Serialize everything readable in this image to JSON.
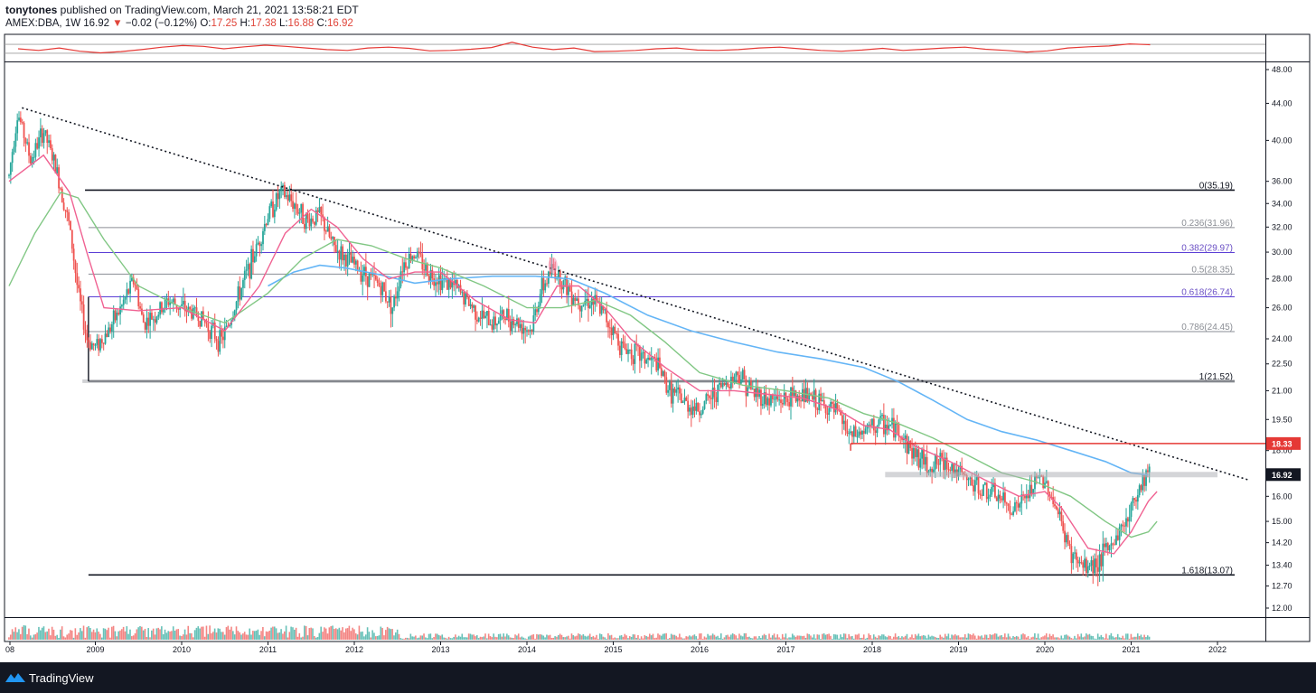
{
  "header": {
    "author": "tonytones",
    "published": " published on TradingView.com, March 21, 2021 13:58:21 EDT",
    "symbol": "AMEX:DBA, 1W",
    "price": "16.92",
    "arrow": "▼",
    "change": "−0.02 (−0.12%)",
    "o_label": "O:",
    "o_val": "17.25",
    "h_label": "H:",
    "h_val": "17.38",
    "l_label": "L:",
    "l_val": "16.88",
    "c_label": "C:",
    "c_val": "16.92"
  },
  "footer": {
    "brand": "TradingView"
  },
  "colors": {
    "up": "#26a69a",
    "down": "#ef5350",
    "ma_short": "#f06292",
    "ma_mid": "#81c784",
    "ma_long": "#64b5f6",
    "fib_purple": "#5b3fd6",
    "resistance": "#e53935",
    "indicator": "#e53935"
  },
  "chart_data": {
    "type": "candlestick",
    "timeframe": "1W",
    "y_axis_ticks": [
      "48.00",
      "44.00",
      "40.00",
      "36.00",
      "34.00",
      "32.00",
      "30.00",
      "28.00",
      "26.00",
      "24.00",
      "22.50",
      "21.00",
      "19.50",
      "18.00",
      "16.00",
      "15.00",
      "14.20",
      "13.40",
      "12.70",
      "12.00"
    ],
    "y_scale": "log",
    "x_axis_ticks": [
      "08",
      "2009",
      "2010",
      "2011",
      "2012",
      "2013",
      "2014",
      "2015",
      "2016",
      "2017",
      "2018",
      "2019",
      "2020",
      "2021",
      "2022"
    ],
    "price_labels": {
      "resistance": "18.33",
      "last": "16.92"
    },
    "fib_levels": [
      {
        "label": "0(35.19)",
        "value": 35.19
      },
      {
        "label": "0.236(31.96)",
        "value": 31.96
      },
      {
        "label": "0.382(29.97)",
        "value": 29.97
      },
      {
        "label": "0.5(28.35)",
        "value": 28.35
      },
      {
        "label": "0.618(26.74)",
        "value": 26.74
      },
      {
        "label": "0.786(24.45)",
        "value": 24.45
      },
      {
        "label": "1(21.52)",
        "value": 21.52
      },
      {
        "label": "1.618(13.07)",
        "value": 13.07
      }
    ],
    "close_path": [
      [
        2008.0,
        36.5
      ],
      [
        2008.1,
        43.0
      ],
      [
        2008.25,
        38.0
      ],
      [
        2008.4,
        41.0
      ],
      [
        2008.55,
        37.0
      ],
      [
        2008.7,
        32.0
      ],
      [
        2008.8,
        27.0
      ],
      [
        2008.9,
        24.0
      ],
      [
        2009.0,
        23.5
      ],
      [
        2009.15,
        24.5
      ],
      [
        2009.3,
        26.0
      ],
      [
        2009.45,
        28.0
      ],
      [
        2009.55,
        25.0
      ],
      [
        2009.7,
        25.5
      ],
      [
        2009.85,
        26.5
      ],
      [
        2010.0,
        26.0
      ],
      [
        2010.2,
        25.5
      ],
      [
        2010.35,
        24.5
      ],
      [
        2010.45,
        23.8
      ],
      [
        2010.55,
        25.0
      ],
      [
        2010.7,
        27.5
      ],
      [
        2010.85,
        30.0
      ],
      [
        2011.0,
        33.0
      ],
      [
        2011.15,
        35.0
      ],
      [
        2011.3,
        34.0
      ],
      [
        2011.45,
        32.5
      ],
      [
        2011.6,
        33.0
      ],
      [
        2011.75,
        30.5
      ],
      [
        2011.9,
        29.5
      ],
      [
        2012.1,
        28.5
      ],
      [
        2012.3,
        27.5
      ],
      [
        2012.45,
        26.0
      ],
      [
        2012.55,
        29.0
      ],
      [
        2012.7,
        30.0
      ],
      [
        2012.85,
        28.5
      ],
      [
        2013.0,
        28.0
      ],
      [
        2013.15,
        27.5
      ],
      [
        2013.3,
        26.5
      ],
      [
        2013.45,
        25.5
      ],
      [
        2013.6,
        25.0
      ],
      [
        2013.75,
        25.5
      ],
      [
        2013.9,
        25.0
      ],
      [
        2014.05,
        24.5
      ],
      [
        2014.15,
        27.0
      ],
      [
        2014.3,
        28.8
      ],
      [
        2014.45,
        27.5
      ],
      [
        2014.6,
        26.5
      ],
      [
        2014.75,
        26.5
      ],
      [
        2014.9,
        25.5
      ],
      [
        2015.1,
        23.5
      ],
      [
        2015.3,
        23.0
      ],
      [
        2015.5,
        22.5
      ],
      [
        2015.65,
        21.0
      ],
      [
        2015.85,
        20.3
      ],
      [
        2016.0,
        20.0
      ],
      [
        2016.2,
        21.0
      ],
      [
        2016.45,
        22.0
      ],
      [
        2016.6,
        21.0
      ],
      [
        2016.8,
        20.5
      ],
      [
        2017.0,
        20.5
      ],
      [
        2017.2,
        20.8
      ],
      [
        2017.4,
        20.3
      ],
      [
        2017.6,
        19.8
      ],
      [
        2017.75,
        18.6
      ],
      [
        2017.95,
        19.0
      ],
      [
        2018.1,
        19.3
      ],
      [
        2018.3,
        19.0
      ],
      [
        2018.45,
        18.0
      ],
      [
        2018.65,
        17.3
      ],
      [
        2018.85,
        17.5
      ],
      [
        2019.05,
        16.8
      ],
      [
        2019.25,
        16.3
      ],
      [
        2019.45,
        16.0
      ],
      [
        2019.6,
        15.5
      ],
      [
        2019.75,
        15.8
      ],
      [
        2019.95,
        16.8
      ],
      [
        2020.05,
        16.3
      ],
      [
        2020.2,
        14.8
      ],
      [
        2020.3,
        13.8
      ],
      [
        2020.45,
        13.3
      ],
      [
        2020.6,
        13.5
      ],
      [
        2020.75,
        14.0
      ],
      [
        2020.9,
        14.8
      ],
      [
        2021.0,
        15.5
      ],
      [
        2021.1,
        16.5
      ],
      [
        2021.2,
        17.2
      ],
      [
        2021.22,
        16.92
      ]
    ],
    "ma_short": [
      [
        2008.0,
        36.0
      ],
      [
        2008.4,
        38.5
      ],
      [
        2008.7,
        35.0
      ],
      [
        2008.9,
        30.0
      ],
      [
        2009.1,
        26.0
      ],
      [
        2009.5,
        25.8
      ],
      [
        2010.0,
        26.0
      ],
      [
        2010.5,
        24.5
      ],
      [
        2010.9,
        27.5
      ],
      [
        2011.2,
        31.5
      ],
      [
        2011.5,
        33.5
      ],
      [
        2011.8,
        32.0
      ],
      [
        2012.1,
        29.5
      ],
      [
        2012.4,
        28.0
      ],
      [
        2012.7,
        28.5
      ],
      [
        2013.0,
        28.5
      ],
      [
        2013.4,
        26.5
      ],
      [
        2013.8,
        25.2
      ],
      [
        2014.1,
        25.0
      ],
      [
        2014.35,
        27.5
      ],
      [
        2014.6,
        27.5
      ],
      [
        2014.9,
        26.0
      ],
      [
        2015.2,
        24.0
      ],
      [
        2015.6,
        22.3
      ],
      [
        2016.0,
        21.0
      ],
      [
        2016.4,
        21.0
      ],
      [
        2016.8,
        20.8
      ],
      [
        2017.2,
        20.6
      ],
      [
        2017.6,
        20.0
      ],
      [
        2017.9,
        19.2
      ],
      [
        2018.2,
        19.0
      ],
      [
        2018.5,
        18.2
      ],
      [
        2018.9,
        17.5
      ],
      [
        2019.3,
        16.7
      ],
      [
        2019.7,
        16.0
      ],
      [
        2020.0,
        16.2
      ],
      [
        2020.2,
        15.5
      ],
      [
        2020.5,
        14.0
      ],
      [
        2020.8,
        13.8
      ],
      [
        2021.0,
        14.6
      ],
      [
        2021.2,
        15.8
      ],
      [
        2021.3,
        16.2
      ]
    ],
    "ma_mid": [
      [
        2008.0,
        27.5
      ],
      [
        2008.3,
        31.5
      ],
      [
        2008.6,
        35.0
      ],
      [
        2008.8,
        34.5
      ],
      [
        2009.1,
        31.0
      ],
      [
        2009.5,
        27.5
      ],
      [
        2010.0,
        26.0
      ],
      [
        2010.5,
        25.0
      ],
      [
        2011.0,
        27.0
      ],
      [
        2011.4,
        29.5
      ],
      [
        2011.8,
        31.0
      ],
      [
        2012.2,
        30.5
      ],
      [
        2012.6,
        29.5
      ],
      [
        2013.0,
        28.8
      ],
      [
        2013.5,
        27.5
      ],
      [
        2014.0,
        26.0
      ],
      [
        2014.4,
        26.0
      ],
      [
        2014.8,
        26.5
      ],
      [
        2015.2,
        25.5
      ],
      [
        2015.6,
        23.8
      ],
      [
        2016.0,
        22.0
      ],
      [
        2016.5,
        21.3
      ],
      [
        2017.0,
        21.0
      ],
      [
        2017.5,
        20.6
      ],
      [
        2017.9,
        19.8
      ],
      [
        2018.3,
        19.3
      ],
      [
        2018.7,
        18.6
      ],
      [
        2019.1,
        17.8
      ],
      [
        2019.5,
        17.0
      ],
      [
        2019.9,
        16.6
      ],
      [
        2020.3,
        16.0
      ],
      [
        2020.7,
        15.0
      ],
      [
        2021.0,
        14.4
      ],
      [
        2021.2,
        14.6
      ],
      [
        2021.3,
        15.0
      ]
    ],
    "ma_long": [
      [
        2011.0,
        27.5
      ],
      [
        2011.3,
        28.5
      ],
      [
        2011.6,
        29.0
      ],
      [
        2011.9,
        28.8
      ],
      [
        2012.3,
        28.3
      ],
      [
        2012.7,
        27.7
      ],
      [
        2013.1,
        28.0
      ],
      [
        2013.6,
        28.2
      ],
      [
        2014.1,
        28.2
      ],
      [
        2014.5,
        28.0
      ],
      [
        2014.9,
        27.0
      ],
      [
        2015.4,
        25.5
      ],
      [
        2015.9,
        24.5
      ],
      [
        2016.4,
        23.8
      ],
      [
        2016.9,
        23.2
      ],
      [
        2017.4,
        22.8
      ],
      [
        2017.9,
        22.3
      ],
      [
        2018.3,
        21.5
      ],
      [
        2018.7,
        20.5
      ],
      [
        2019.1,
        19.5
      ],
      [
        2019.5,
        18.9
      ],
      [
        2019.9,
        18.5
      ],
      [
        2020.3,
        18.0
      ],
      [
        2020.7,
        17.5
      ],
      [
        2021.0,
        17.0
      ],
      [
        2021.2,
        16.9
      ]
    ],
    "trendline": [
      [
        2008.15,
        43.5
      ],
      [
        2022.35,
        16.7
      ]
    ],
    "resistance_line": {
      "from": 2017.75,
      "value": 18.33
    },
    "support_zone": {
      "from": 2018.15,
      "to": 2022.0,
      "value": 16.92
    },
    "indicator": {
      "name": "oscillator",
      "upper": 0.55,
      "mid": 0.0,
      "lower": -0.55,
      "values": [
        0.0,
        -0.2,
        0.1,
        -0.3,
        -0.5,
        -0.35,
        -0.1,
        0.2,
        0.4,
        0.3,
        0.0,
        0.25,
        0.45,
        0.3,
        0.1,
        -0.1,
        -0.2,
        0.1,
        0.2,
        0.05,
        -0.25,
        -0.2,
        -0.05,
        0.15,
        0.8,
        0.2,
        -0.1,
        0.1,
        -0.35,
        -0.3,
        -0.2,
        0.0,
        0.1,
        -0.15,
        -0.2,
        -0.1,
        0.1,
        0.2,
        0.0,
        -0.2,
        -0.3,
        -0.15,
        0.05,
        -0.2,
        -0.05,
        0.1,
        0.2,
        -0.05,
        -0.2,
        -0.4,
        -0.25,
        0.1,
        0.25,
        0.35,
        0.6,
        0.5
      ]
    }
  }
}
